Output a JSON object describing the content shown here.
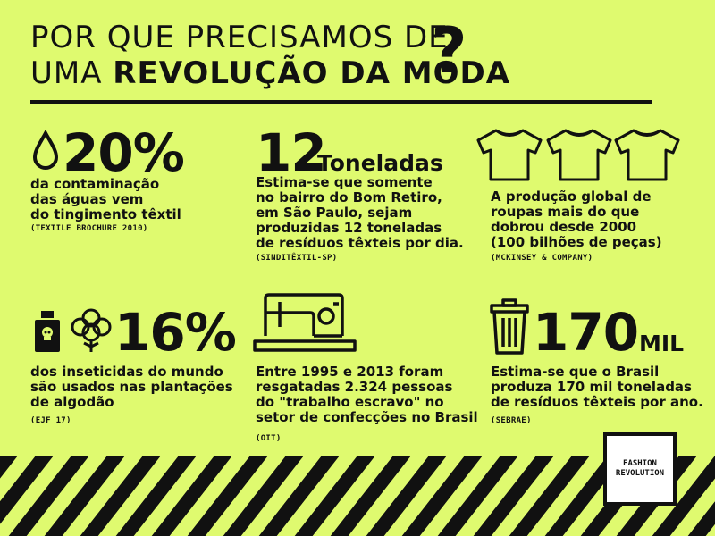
{
  "header": {
    "title_line1": "POR QUE PRECISAMOS DE",
    "title_line2_prefix": "UMA ",
    "title_line2_bold": "REVOLUÇÃO DA MODA",
    "question_mark": "?"
  },
  "stats": [
    {
      "big": "20%",
      "lines": [
        "da contaminação",
        "das águas vem",
        "do tingimento têxtil"
      ],
      "source": "(TEXTILE BROCHURE 2010)",
      "icon": "water-drop-icon"
    },
    {
      "big": "12",
      "big_suffix": "Toneladas",
      "lines": [
        "Estima-se que somente",
        "no bairro do Bom Retiro,",
        "em São Paulo, sejam",
        "produzidas 12 toneladas",
        "de resíduos têxteis por dia."
      ],
      "source": "(SINDITÊXTIL-SP)"
    },
    {
      "lines": [
        "A produção global de",
        "roupas mais do que",
        "dobrou desde 2000",
        "(100 bilhões de peças)"
      ],
      "source": "(MCKINSEY & COMPANY)",
      "icon": "tshirt-icon"
    },
    {
      "big": "16%",
      "lines": [
        "dos inseticidas do mundo",
        "são usados nas plantações",
        "de algodão"
      ],
      "source": "(EJF 17)",
      "icons": [
        "poison-bottle-icon",
        "cotton-plant-icon"
      ]
    },
    {
      "lines": [
        "Entre 1995 e 2013 foram",
        "resgatadas 2.324 pessoas",
        "do \"trabalho escravo\" no",
        "setor de confecções no Brasil"
      ],
      "source": "(OIT)",
      "icon": "sewing-machine-icon"
    },
    {
      "big": "170",
      "big_suffix": "MIL",
      "lines": [
        "Estima-se que o Brasil",
        "produza 170 mil toneladas",
        "de resíduos têxteis por ano."
      ],
      "source": "(SEBRAE)",
      "icon": "trash-can-icon"
    }
  ],
  "logo": {
    "line1": "FASHION",
    "line2": "REVOLUTION"
  },
  "colors": {
    "background": "#dffa6f",
    "ink": "#111111",
    "logo_bg": "#ffffff"
  }
}
